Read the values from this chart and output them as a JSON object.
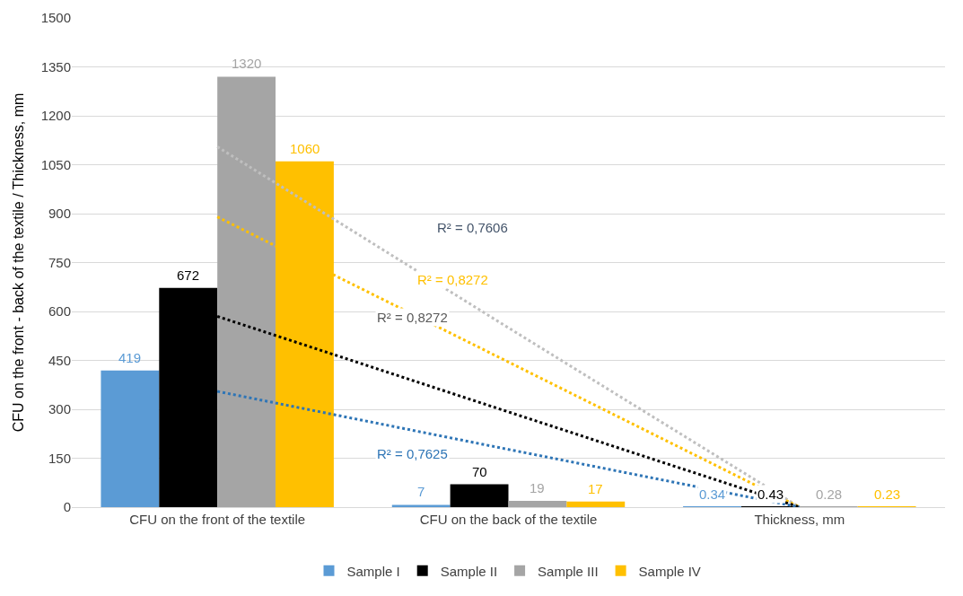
{
  "chart_data": {
    "type": "bar",
    "ylabel": "CFU on the front - back of the textile / Thickness, mm",
    "categories": [
      "CFU on the front of the textile",
      "CFU on the back of the textile",
      "Thickness, mm"
    ],
    "series": [
      {
        "name": "Sample I",
        "color": "#5b9bd5",
        "values": [
          419,
          7,
          0.34
        ],
        "value_labels": [
          "419",
          "7",
          "0.34"
        ]
      },
      {
        "name": "Sample II",
        "color": "#000000",
        "values": [
          672,
          70,
          0.43
        ],
        "value_labels": [
          "672",
          "70",
          "0.43"
        ]
      },
      {
        "name": "Sample III",
        "color": "#a5a5a5",
        "values": [
          1320,
          19,
          0.28
        ],
        "value_labels": [
          "1320",
          "19",
          "0.28"
        ]
      },
      {
        "name": "Sample IV",
        "color": "#ffc000",
        "values": [
          1060,
          17,
          0.23
        ],
        "value_labels": [
          "1060",
          "17",
          "0.23"
        ]
      },
      {
        "type": "line",
        "values": [
          1105,
          550,
          0
        ],
        "color": "#bfbfbf",
        "line_style": "dotted"
      },
      {
        "type": "line",
        "values": [
          890,
          445,
          0
        ],
        "color": "#ffc000",
        "line_style": "dotted"
      },
      {
        "type": "line",
        "values": [
          585,
          292,
          0
        ],
        "color": "#000000",
        "line_style": "dotted"
      },
      {
        "type": "line",
        "values": [
          355,
          177,
          0
        ],
        "color": "#2e75b6",
        "line_style": "dotted"
      }
    ],
    "annotations": [
      "R² = 0,7606",
      "R² = 0,8272",
      "R² = 0,8272",
      "R² = 0,7625"
    ],
    "ylim": [
      0,
      1500
    ],
    "yticks": [
      0,
      150,
      300,
      450,
      600,
      750,
      900,
      1050,
      1200,
      1350,
      1500
    ],
    "grid": "y",
    "legend": "bottom"
  }
}
